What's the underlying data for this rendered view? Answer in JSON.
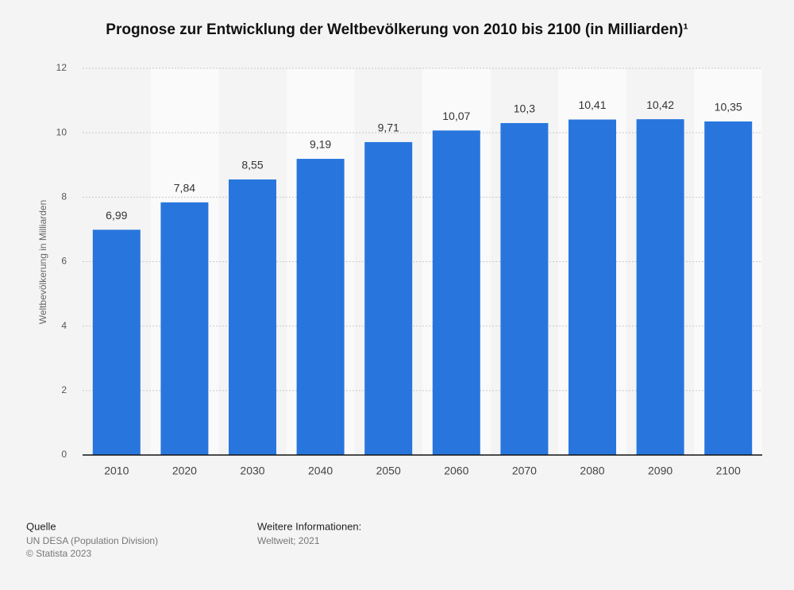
{
  "chart_data": {
    "type": "bar",
    "title": "Prognose zur Entwicklung der Weltbevölkerung von 2010 bis 2100 (in Milliarden)¹",
    "y_label": "Weltbevölkerung in Milliarden",
    "categories": [
      "2010",
      "2020",
      "2030",
      "2040",
      "2050",
      "2060",
      "2070",
      "2080",
      "2090",
      "2100"
    ],
    "values": [
      6.99,
      7.84,
      8.55,
      9.19,
      9.71,
      10.07,
      10.3,
      10.41,
      10.42,
      10.35
    ],
    "value_labels": [
      "6,99",
      "7,84",
      "8,55",
      "9,19",
      "9,71",
      "10,07",
      "10,3",
      "10,41",
      "10,42",
      "10,35"
    ],
    "color": "#2876dd",
    "ylim": [
      0,
      12
    ],
    "yticks": [
      0,
      2,
      4,
      6,
      8,
      10,
      12
    ],
    "grid": true
  },
  "footer": {
    "source_heading": "Quelle",
    "source": "UN DESA (Population Division)",
    "copyright": "© Statista 2023",
    "info_heading": "Weitere Informationen:",
    "info": "Weltweit; 2021"
  }
}
